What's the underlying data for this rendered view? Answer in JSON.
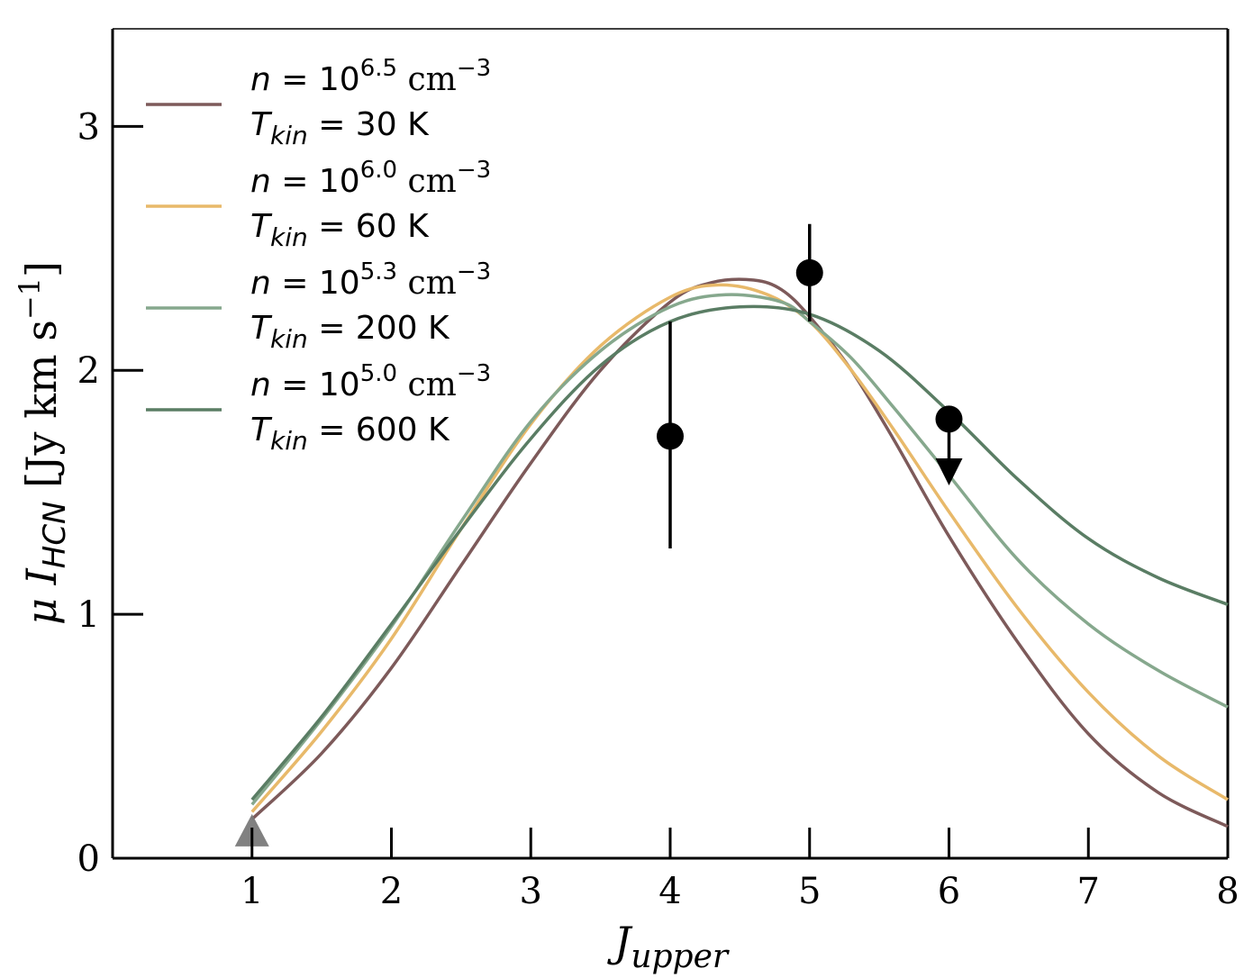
{
  "chart_data": {
    "type": "line",
    "title": "",
    "xlabel": "J",
    "xlabel_sub": "upper",
    "ylabel_mu": "μ",
    "ylabel_I": "I",
    "ylabel_sub": "HCN",
    "ylabel_units": "[Jy km s",
    "ylabel_exp": "−1",
    "ylabel_close": "]",
    "xlim": [
      0,
      8
    ],
    "ylim": [
      0,
      3.4
    ],
    "xticks": [
      1,
      2,
      3,
      4,
      5,
      6,
      7,
      8
    ],
    "xtick_labels": [
      "1",
      "2",
      "3",
      "4",
      "5",
      "6",
      "7",
      "8"
    ],
    "yticks": [
      0,
      1,
      2,
      3
    ],
    "ytick_labels": [
      "0",
      "1",
      "2",
      "3"
    ],
    "grid": false,
    "legend_position": "top-left",
    "series": [
      {
        "name": "n = 10^6.5 cm^-3, T_kin = 30 K",
        "n_label": "n",
        "n_base": "= 10",
        "n_exp": "6.5",
        "n_unit": "cm",
        "n_unit_exp": "−3",
        "t_label": "T",
        "t_sub": "kin",
        "t_value": "= 30 K",
        "color": "#7d5a5a",
        "x": [
          1,
          1.5,
          2,
          2.5,
          3,
          3.5,
          4,
          4.3,
          4.6,
          4.8,
          5,
          5.3,
          5.6,
          6,
          6.5,
          7,
          7.5,
          8
        ],
        "y": [
          0.16,
          0.43,
          0.78,
          1.2,
          1.62,
          2.0,
          2.28,
          2.36,
          2.37,
          2.33,
          2.22,
          2.0,
          1.72,
          1.32,
          0.88,
          0.51,
          0.27,
          0.13
        ]
      },
      {
        "name": "n = 10^6.0 cm^-3, T_kin = 60 K",
        "n_label": "n",
        "n_base": "= 10",
        "n_exp": "6.0",
        "n_unit": "cm",
        "n_unit_exp": "−3",
        "t_label": "T",
        "t_sub": "kin",
        "t_value": "= 60 K",
        "color": "#e8b96a",
        "x": [
          1,
          1.5,
          2,
          2.5,
          3,
          3.5,
          4,
          4.35,
          4.7,
          5,
          5.3,
          5.6,
          6,
          6.5,
          7,
          7.5,
          8
        ],
        "y": [
          0.19,
          0.52,
          0.9,
          1.35,
          1.78,
          2.1,
          2.3,
          2.35,
          2.31,
          2.2,
          2.0,
          1.76,
          1.42,
          1.02,
          0.68,
          0.42,
          0.24
        ]
      },
      {
        "name": "n = 10^5.3 cm^-3, T_kin = 200 K",
        "n_label": "n",
        "n_base": "= 10",
        "n_exp": "5.3",
        "n_unit": "cm",
        "n_unit_exp": "−3",
        "t_label": "T",
        "t_sub": "kin",
        "t_value": "= 200 K",
        "color": "#86a88d",
        "x": [
          1,
          1.5,
          2,
          2.5,
          3,
          3.5,
          4,
          4.4,
          4.8,
          5,
          5.3,
          5.6,
          6,
          6.5,
          7,
          7.5,
          8
        ],
        "y": [
          0.22,
          0.57,
          0.95,
          1.38,
          1.79,
          2.08,
          2.26,
          2.31,
          2.28,
          2.2,
          2.05,
          1.85,
          1.57,
          1.22,
          0.96,
          0.77,
          0.62
        ]
      },
      {
        "name": "n = 10^5.0 cm^-3, T_kin = 600 K",
        "n_label": "n",
        "n_base": "= 10",
        "n_exp": "5.0",
        "n_unit": "cm",
        "n_unit_exp": "−3",
        "t_label": "T",
        "t_sub": "kin",
        "t_value": "= 600 K",
        "color": "#5a7d64",
        "x": [
          1,
          1.5,
          2,
          2.5,
          3,
          3.5,
          4,
          4.5,
          5,
          5.5,
          6,
          6.5,
          7,
          7.5,
          8
        ],
        "y": [
          0.24,
          0.58,
          0.96,
          1.35,
          1.72,
          2.02,
          2.2,
          2.26,
          2.23,
          2.08,
          1.83,
          1.55,
          1.31,
          1.15,
          1.04
        ]
      }
    ],
    "observations": [
      {
        "x": 4,
        "y": 1.73,
        "yerr_low": 1.27,
        "yerr_high": 2.2,
        "kind": "point",
        "color": "#000000"
      },
      {
        "x": 5,
        "y": 2.4,
        "yerr_low": 2.2,
        "yerr_high": 2.6,
        "kind": "point",
        "color": "#000000"
      },
      {
        "x": 6,
        "y": 1.8,
        "arrow_to": 1.58,
        "kind": "upper-limit",
        "color": "#000000"
      },
      {
        "x": 1,
        "y": 0.1,
        "kind": "triangle-marker",
        "color": "#7a7a7a"
      }
    ]
  }
}
